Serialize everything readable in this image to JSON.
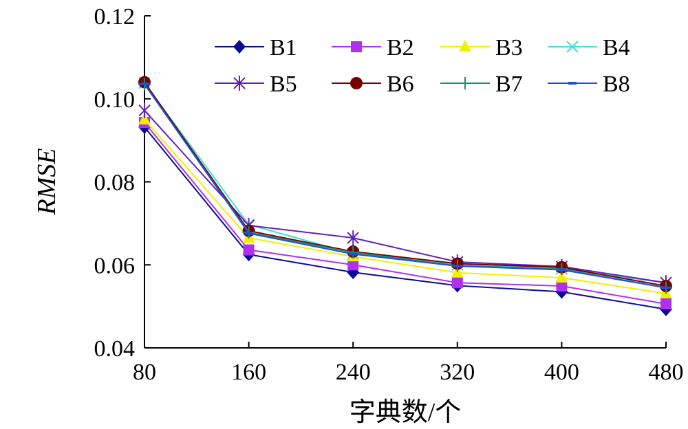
{
  "chart_data": {
    "type": "line",
    "xlabel": "字典数/个",
    "ylabel": "RMSE",
    "x": [
      80,
      160,
      240,
      320,
      400,
      480
    ],
    "xticks": [
      "80",
      "160",
      "240",
      "320",
      "400",
      "480"
    ],
    "ylim": [
      0.04,
      0.12
    ],
    "yticks": [
      "0.04",
      "0.06",
      "0.08",
      "0.10",
      "0.12"
    ],
    "grid": false,
    "legend_position": "top-right",
    "series": [
      {
        "name": "B1",
        "color": "#0a0a9a",
        "marker": "diamond",
        "values": [
          0.0932,
          0.0625,
          0.0582,
          0.055,
          0.0535,
          0.0493
        ]
      },
      {
        "name": "B2",
        "color": "#b030f0",
        "marker": "square",
        "values": [
          0.0943,
          0.0636,
          0.06,
          0.0557,
          0.0549,
          0.0506
        ]
      },
      {
        "name": "B3",
        "color": "#f0f000",
        "marker": "triangle",
        "values": [
          0.095,
          0.0665,
          0.062,
          0.0581,
          0.0569,
          0.0531
        ]
      },
      {
        "name": "B4",
        "color": "#40e0d0",
        "marker": "x",
        "values": [
          0.1038,
          0.0697,
          0.0627,
          0.06,
          0.059,
          0.0557
        ]
      },
      {
        "name": "B5",
        "color": "#6020c0",
        "marker": "star",
        "values": [
          0.0972,
          0.0695,
          0.0665,
          0.0607,
          0.0596,
          0.0557
        ]
      },
      {
        "name": "B6",
        "color": "#7a0000",
        "marker": "circle",
        "values": [
          0.104,
          0.0682,
          0.0632,
          0.0603,
          0.0594,
          0.0549
        ]
      },
      {
        "name": "B7",
        "color": "#1a9070",
        "marker": "plus",
        "values": [
          0.1035,
          0.0678,
          0.063,
          0.0598,
          0.059,
          0.0545
        ]
      },
      {
        "name": "B8",
        "color": "#1a50e0",
        "marker": "dash",
        "values": [
          0.1036,
          0.0676,
          0.0626,
          0.0597,
          0.0588,
          0.0545
        ]
      }
    ]
  }
}
